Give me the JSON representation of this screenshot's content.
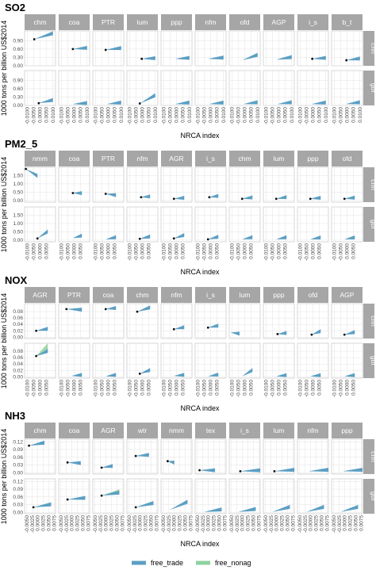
{
  "figure": {
    "y_axis_label": "1000 tons per billion US$2014",
    "x_axis_label": "NRCA index",
    "legend": [
      {
        "name": "free_trade",
        "color": "#5b9fc4"
      },
      {
        "name": "free_nonag",
        "color": "#8fd19e"
      }
    ]
  },
  "chart_data": [
    {
      "type": "area",
      "title": "SO2",
      "xlabel": "NRCA index",
      "ylabel": "1000 tons per billion US$2014",
      "xlim": [
        -0.012,
        0.012
      ],
      "xticks": [
        -0.01,
        -0.005,
        0,
        0.005,
        0.01
      ],
      "xtick_labels": [
        "-0.0100",
        "-0.0050",
        "0.0000",
        "0.0050",
        "0.0100"
      ],
      "ylim": [
        0,
        1.25
      ],
      "yticks": [
        0,
        0.3,
        0.6,
        0.9
      ],
      "ytick_labels": [
        "0.00",
        "0.30",
        "0.60",
        "0.90"
      ],
      "rows": [
        "chn",
        "gbr"
      ],
      "sectors": [
        "chm",
        "coa",
        "PTR",
        "lum",
        "ppp",
        "nfm",
        "ofd",
        "AGP",
        "i_s",
        "b_t"
      ],
      "series": [
        {
          "name": "free_trade",
          "start": [
            [
              -0.0045,
              0.95
            ],
            [
              -0.001,
              0.6
            ],
            [
              -0.002,
              0.57
            ],
            [
              -0.0005,
              0.25
            ],
            [
              -0.001,
              0.25
            ],
            [
              -0.002,
              0.25
            ],
            [
              -0.002,
              0.2
            ],
            [
              -0.002,
              0.22
            ],
            [
              -0.0005,
              0.25
            ],
            [
              -0.0005,
              0.2
            ]
          ],
          "end": [
            [
              0.01,
              1.15
            ],
            [
              0.01,
              0.63
            ],
            [
              0.01,
              0.62
            ],
            [
              0.01,
              0.26
            ],
            [
              0.01,
              0.27
            ],
            [
              0.01,
              0.28
            ],
            [
              0.01,
              0.38
            ],
            [
              0.01,
              0.3
            ],
            [
              0.01,
              0.27
            ],
            [
              0.01,
              0.25
            ]
          ]
        },
        {
          "name": "free_trade_gbr",
          "start": [
            [
              -0.001,
              0.08
            ],
            [
              -0.001,
              0.05
            ],
            [
              -0.001,
              0.05
            ],
            [
              -0.002,
              0.07
            ],
            [
              -0.001,
              0.05
            ],
            [
              -0.001,
              0.05
            ],
            [
              -0.001,
              0.05
            ],
            [
              -0.001,
              0.05
            ],
            [
              -0.001,
              0.05
            ],
            [
              -0.001,
              0.05
            ]
          ],
          "end": [
            [
              0.01,
              0.18
            ],
            [
              0.01,
              0.07
            ],
            [
              0.01,
              0.09
            ],
            [
              0.01,
              0.35
            ],
            [
              0.01,
              0.09
            ],
            [
              0.01,
              0.09
            ],
            [
              0.01,
              0.1
            ],
            [
              0.01,
              0.1
            ],
            [
              0.01,
              0.09
            ],
            [
              0.01,
              0.1
            ]
          ]
        }
      ],
      "chn_has_point": [
        true,
        true,
        true,
        true,
        false,
        false,
        false,
        false,
        true,
        true
      ],
      "gbr_has_point": [
        true,
        false,
        false,
        true,
        false,
        false,
        false,
        false,
        false,
        false
      ]
    },
    {
      "type": "area",
      "title": "PM2_5",
      "xlabel": "NRCA index",
      "ylabel": "1000 tons per billion US$2014",
      "xlim": [
        -0.012,
        0.012
      ],
      "xticks": [
        -0.01,
        -0.005,
        0,
        0.005
      ],
      "xtick_labels": [
        "-0.0100",
        "-0.0050",
        "0.0000",
        "0.0050"
      ],
      "ylim": [
        -0.1,
        2.0
      ],
      "yticks": [
        0,
        0.5,
        1.0,
        1.5
      ],
      "ytick_labels": [
        "0.00",
        "0.50",
        "1.00",
        "1.50"
      ],
      "rows": [
        "chn",
        "gbr"
      ],
      "sectors": [
        "nmm",
        "coa",
        "PTR",
        "nfm",
        "AGR",
        "i_s",
        "chm",
        "lum",
        "ppp",
        "ofd"
      ],
      "series": [
        {
          "name": "free_trade",
          "start": [
            [
              -0.011,
              1.9
            ],
            [
              -0.001,
              0.45
            ],
            [
              -0.002,
              0.4
            ],
            [
              -0.001,
              0.2
            ],
            [
              -0.002,
              0.1
            ],
            [
              -0.001,
              0.2
            ],
            [
              -0.002,
              0.1
            ],
            [
              -0.002,
              0.1
            ],
            [
              -0.002,
              0.1
            ],
            [
              -0.002,
              0.1
            ]
          ],
          "end": [
            [
              -0.002,
              1.45
            ],
            [
              0.006,
              0.42
            ],
            [
              0.006,
              0.3
            ],
            [
              0.006,
              0.22
            ],
            [
              0.006,
              0.14
            ],
            [
              0.006,
              0.25
            ],
            [
              0.006,
              0.16
            ],
            [
              0.006,
              0.18
            ],
            [
              0.006,
              0.14
            ],
            [
              0.006,
              0.15
            ]
          ]
        },
        {
          "name": "free_trade_gbr",
          "start": [
            [
              -0.002,
              0.1
            ],
            [
              -0.001,
              0.12
            ],
            [
              -0.002,
              0.05
            ],
            [
              -0.002,
              0.08
            ],
            [
              -0.002,
              0.1
            ],
            [
              -0.002,
              0.05
            ],
            [
              -0.002,
              0.05
            ],
            [
              -0.002,
              0.05
            ],
            [
              -0.002,
              0.05
            ],
            [
              -0.002,
              0.05
            ]
          ],
          "end": [
            [
              0.006,
              0.5
            ],
            [
              0.006,
              0.25
            ],
            [
              0.006,
              0.15
            ],
            [
              0.006,
              0.2
            ],
            [
              0.006,
              0.28
            ],
            [
              0.006,
              0.18
            ],
            [
              0.006,
              0.15
            ],
            [
              0.006,
              0.15
            ],
            [
              0.006,
              0.14
            ],
            [
              0.006,
              0.14
            ]
          ]
        }
      ],
      "chn_has_point": [
        true,
        true,
        true,
        true,
        true,
        true,
        true,
        true,
        true,
        true
      ],
      "gbr_has_point": [
        true,
        false,
        false,
        true,
        true,
        true,
        false,
        false,
        false,
        false
      ]
    },
    {
      "type": "area",
      "title": "NOX",
      "xlabel": "NRCA index",
      "ylabel": "1000 tons per billion US$2014",
      "xlim": [
        -0.012,
        0.012
      ],
      "xticks": [
        -0.01,
        -0.005,
        0,
        0.005
      ],
      "xtick_labels": [
        "-0.0100",
        "-0.0050",
        "0.0000",
        "0.0050"
      ],
      "ylim": [
        -0.004,
        0.105
      ],
      "yticks": [
        0,
        0.02,
        0.04,
        0.06,
        0.08
      ],
      "ytick_labels": [
        "0.00",
        "0.02",
        "0.04",
        "0.06",
        "0.08"
      ],
      "rows": [
        "chn",
        "gbr"
      ],
      "sectors": [
        "AGR",
        "PTR",
        "coa",
        "chm",
        "nfm",
        "i_s",
        "lum",
        "ppp",
        "ofd",
        "AGP"
      ],
      "series": [
        {
          "name": "free_trade",
          "start": [
            [
              -0.003,
              0.02
            ],
            [
              -0.006,
              0.088
            ],
            [
              -0.002,
              0.088
            ],
            [
              -0.004,
              0.08
            ],
            [
              -0.002,
              0.025
            ],
            [
              -0.002,
              0.03
            ],
            [
              -0.011,
              0.015
            ],
            [
              -0.001,
              0.01
            ],
            [
              -0.001,
              0.008
            ],
            [
              -0.002,
              0.008
            ]
          ],
          "end": [
            [
              0.006,
              0.025
            ],
            [
              0.006,
              0.085
            ],
            [
              0.006,
              0.09
            ],
            [
              0.006,
              0.092
            ],
            [
              0.006,
              0.03
            ],
            [
              0.006,
              0.035
            ],
            [
              -0.004,
              0.01
            ],
            [
              0.006,
              0.012
            ],
            [
              0.006,
              0.018
            ],
            [
              0.006,
              0.015
            ]
          ]
        },
        {
          "name": "free_trade_gbr",
          "start": [
            [
              -0.003,
              0.065
            ],
            [
              -0.002,
              0.003
            ],
            [
              -0.002,
              0.002
            ],
            [
              -0.002,
              0.01
            ],
            [
              -0.002,
              0.003
            ],
            [
              -0.002,
              0.002
            ],
            [
              -0.002,
              0.002
            ],
            [
              -0.002,
              0.002
            ],
            [
              -0.002,
              0.002
            ],
            [
              -0.002,
              0.002
            ]
          ],
          "end": [
            [
              0.006,
              0.08
            ],
            [
              0.006,
              0.005
            ],
            [
              0.006,
              0.005
            ],
            [
              0.006,
              0.02
            ],
            [
              0.006,
              0.005
            ],
            [
              0.006,
              0.006
            ],
            [
              0.006,
              0.02
            ],
            [
              0.006,
              0.004
            ],
            [
              0.006,
              0.004
            ],
            [
              0.006,
              0.004
            ]
          ]
        },
        {
          "name": "free_nonag",
          "start": [
            [
              -0.003,
              0.065
            ]
          ],
          "end": [
            [
              0.006,
              0.095
            ]
          ]
        }
      ],
      "chn_has_point": [
        true,
        true,
        true,
        true,
        true,
        true,
        false,
        true,
        true,
        true
      ],
      "gbr_has_point": [
        true,
        false,
        false,
        true,
        false,
        false,
        false,
        false,
        false,
        false
      ]
    },
    {
      "type": "area",
      "title": "NH3",
      "xlabel": "NRCA index",
      "ylabel": "1000 tons per billion US$2014",
      "xlim": [
        -0.006,
        0.008
      ],
      "xticks": [
        -0.005,
        -0.0025,
        0,
        0.0025,
        0.005,
        0.0075
      ],
      "xtick_labels": [
        "-0.0050",
        "-0.0025",
        "0.0000",
        "0.0025",
        "0.0050",
        "0.0075"
      ],
      "ylim": [
        -0.005,
        0.13
      ],
      "yticks": [
        0,
        0.03,
        0.06,
        0.09,
        0.12
      ],
      "ytick_labels": [
        "0.00",
        "0.03",
        "0.06",
        "0.09",
        "0.12"
      ],
      "rows": [
        "chn",
        "gbr"
      ],
      "sectors": [
        "chm",
        "coa",
        "AGR",
        "wtr",
        "nmm",
        "tex",
        "i_s",
        "lum",
        "nfm",
        "ppp"
      ],
      "series": [
        {
          "name": "free_trade",
          "start": [
            [
              -0.004,
              0.105
            ],
            [
              -0.002,
              0.04
            ],
            [
              -0.002,
              0.02
            ],
            [
              -0.002,
              0.065
            ],
            [
              -0.003,
              0.045
            ],
            [
              -0.004,
              0.01
            ],
            [
              -0.001,
              0.006
            ],
            [
              -0.001,
              0.006
            ],
            [
              -0.001,
              0.006
            ],
            [
              -0.001,
              0.006
            ]
          ],
          "end": [
            [
              0.003,
              0.115
            ],
            [
              0.004,
              0.036
            ],
            [
              0.003,
              0.025
            ],
            [
              0.004,
              0.068
            ],
            [
              0.0,
              0.038
            ],
            [
              0.003,
              0.008
            ],
            [
              0.008,
              0.008
            ],
            [
              0.008,
              0.01
            ],
            [
              0.008,
              0.01
            ],
            [
              0.008,
              0.01
            ]
          ]
        },
        {
          "name": "free_trade_gbr",
          "start": [
            [
              -0.002,
              0.02
            ],
            [
              -0.002,
              0.05
            ],
            [
              -0.002,
              0.065
            ],
            [
              -0.002,
              0.02
            ],
            [
              -0.002,
              0.01
            ],
            [
              -0.002,
              0.002
            ],
            [
              -0.002,
              0.002
            ],
            [
              -0.002,
              0.002
            ],
            [
              -0.002,
              0.002
            ],
            [
              -0.002,
              0.002
            ]
          ],
          "end": [
            [
              0.006,
              0.03
            ],
            [
              0.006,
              0.055
            ],
            [
              0.006,
              0.075
            ],
            [
              0.006,
              0.035
            ],
            [
              0.006,
              0.04
            ],
            [
              0.006,
              0.01
            ],
            [
              0.006,
              0.012
            ],
            [
              0.006,
              0.02
            ],
            [
              0.006,
              0.02
            ],
            [
              0.006,
              0.02
            ]
          ]
        },
        {
          "name": "free_nonag",
          "start": [
            [
              -0.002,
              0.065
            ]
          ],
          "end": [
            [
              0.006,
              0.08
            ]
          ]
        }
      ],
      "chn_has_point": [
        true,
        true,
        true,
        true,
        true,
        true,
        true,
        true,
        false,
        false
      ],
      "gbr_has_point": [
        true,
        true,
        true,
        true,
        false,
        false,
        false,
        false,
        false,
        false
      ]
    }
  ]
}
